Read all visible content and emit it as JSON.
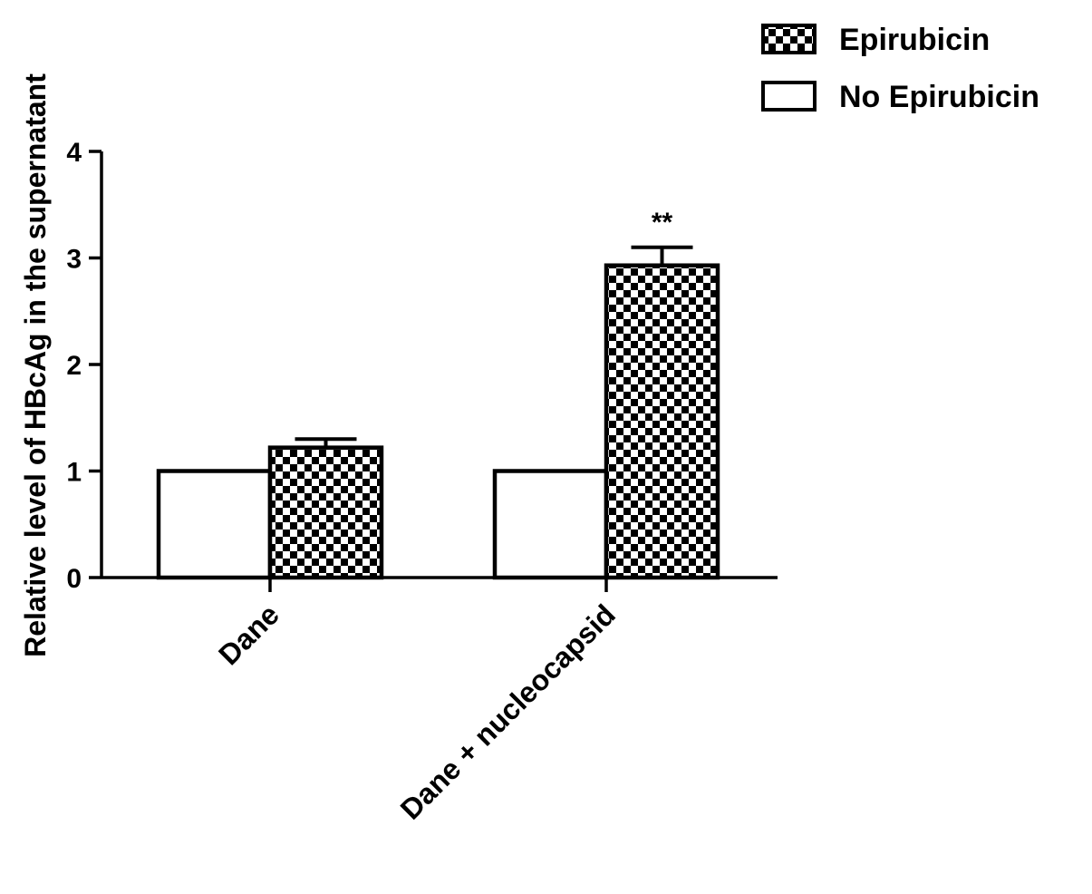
{
  "chart_data": {
    "type": "bar",
    "ylabel": "Relative level of HBcAg in the supernatant",
    "xlabel": "",
    "ylim": [
      0,
      4
    ],
    "yticks": [
      "0",
      "1",
      "2",
      "3",
      "4"
    ],
    "categories": [
      "Dane",
      "Dane + nucleocapsid"
    ],
    "series": [
      {
        "name": "No Epirubicin",
        "fill": "plain",
        "values": [
          1.0,
          1.0
        ],
        "errors": [
          0,
          0
        ],
        "annotations": [
          "",
          ""
        ]
      },
      {
        "name": "Epirubicin",
        "fill": "checkered",
        "values": [
          1.22,
          2.93
        ],
        "errors": [
          0.08,
          0.17
        ],
        "annotations": [
          "",
          "**"
        ]
      }
    ],
    "legend": {
      "placement": "top-right",
      "entries": [
        {
          "label": "Epirubicin",
          "fill": "checkered"
        },
        {
          "label": "No Epirubicin",
          "fill": "plain"
        }
      ]
    },
    "grid": false,
    "colors": {
      "bar_fill": "#ffffff",
      "pattern_dark": "#000000",
      "outline": "#000000"
    }
  }
}
